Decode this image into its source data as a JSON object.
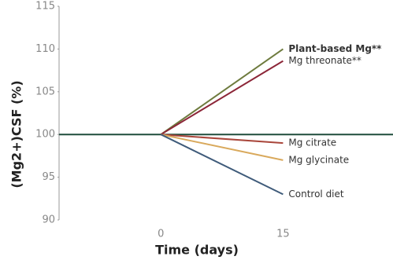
{
  "chart_data": {
    "type": "line",
    "x_label": "Time (days)",
    "y_label": "(Mg2+)CSF (%)",
    "x": [
      0,
      15
    ],
    "series": [
      {
        "name": "Plant-based Mg**",
        "color": "#6e7b3e",
        "values": [
          100,
          110
        ]
      },
      {
        "name": "Mg threonate**",
        "color": "#8c2638",
        "values": [
          100,
          108.6
        ]
      },
      {
        "name": "Mg citrate",
        "color": "#a9463b",
        "values": [
          100,
          99
        ]
      },
      {
        "name": "Mg glycinate",
        "color": "#d9a95c",
        "values": [
          100,
          97
        ]
      },
      {
        "name": "Control diet",
        "color": "#3f5b7a",
        "values": [
          100,
          93
        ]
      }
    ],
    "reference_line": {
      "value": 100,
      "color": "#1f4d3c"
    },
    "xlim": [
      -12.5,
      28.5
    ],
    "xticks": [
      0,
      15
    ],
    "ylim": [
      90,
      115
    ],
    "yticks": [
      90,
      95,
      100,
      105,
      110,
      115
    ]
  }
}
